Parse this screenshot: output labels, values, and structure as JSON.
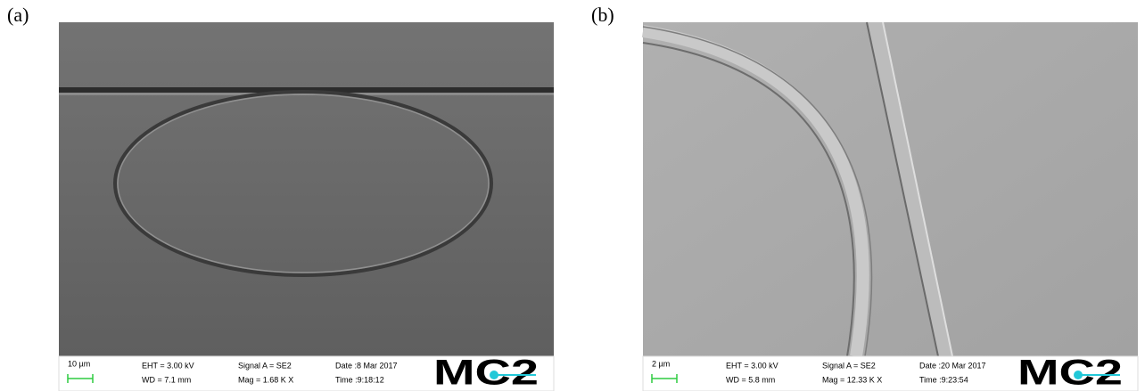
{
  "panels": [
    {
      "label": "(a)",
      "scale": "10 µm",
      "eht": "EHT = 3.00 kV",
      "wd": "WD = 7.1 mm",
      "signal": "Signal A = SE2",
      "mag": "Mag =  1.68 K X",
      "date": "Date :8 Mar 2017",
      "time": "Time :9:18:12",
      "logo": "MC2"
    },
    {
      "label": "(b)",
      "scale": "2 µm",
      "eht": "EHT =  3.00 kV",
      "wd": "WD =  5.8 mm",
      "signal": "Signal A = SE2",
      "mag": "Mag =  12.33 K X",
      "date": "Date :20 Mar 2017",
      "time": "Time :9:23:54",
      "logo": "MC2"
    }
  ]
}
